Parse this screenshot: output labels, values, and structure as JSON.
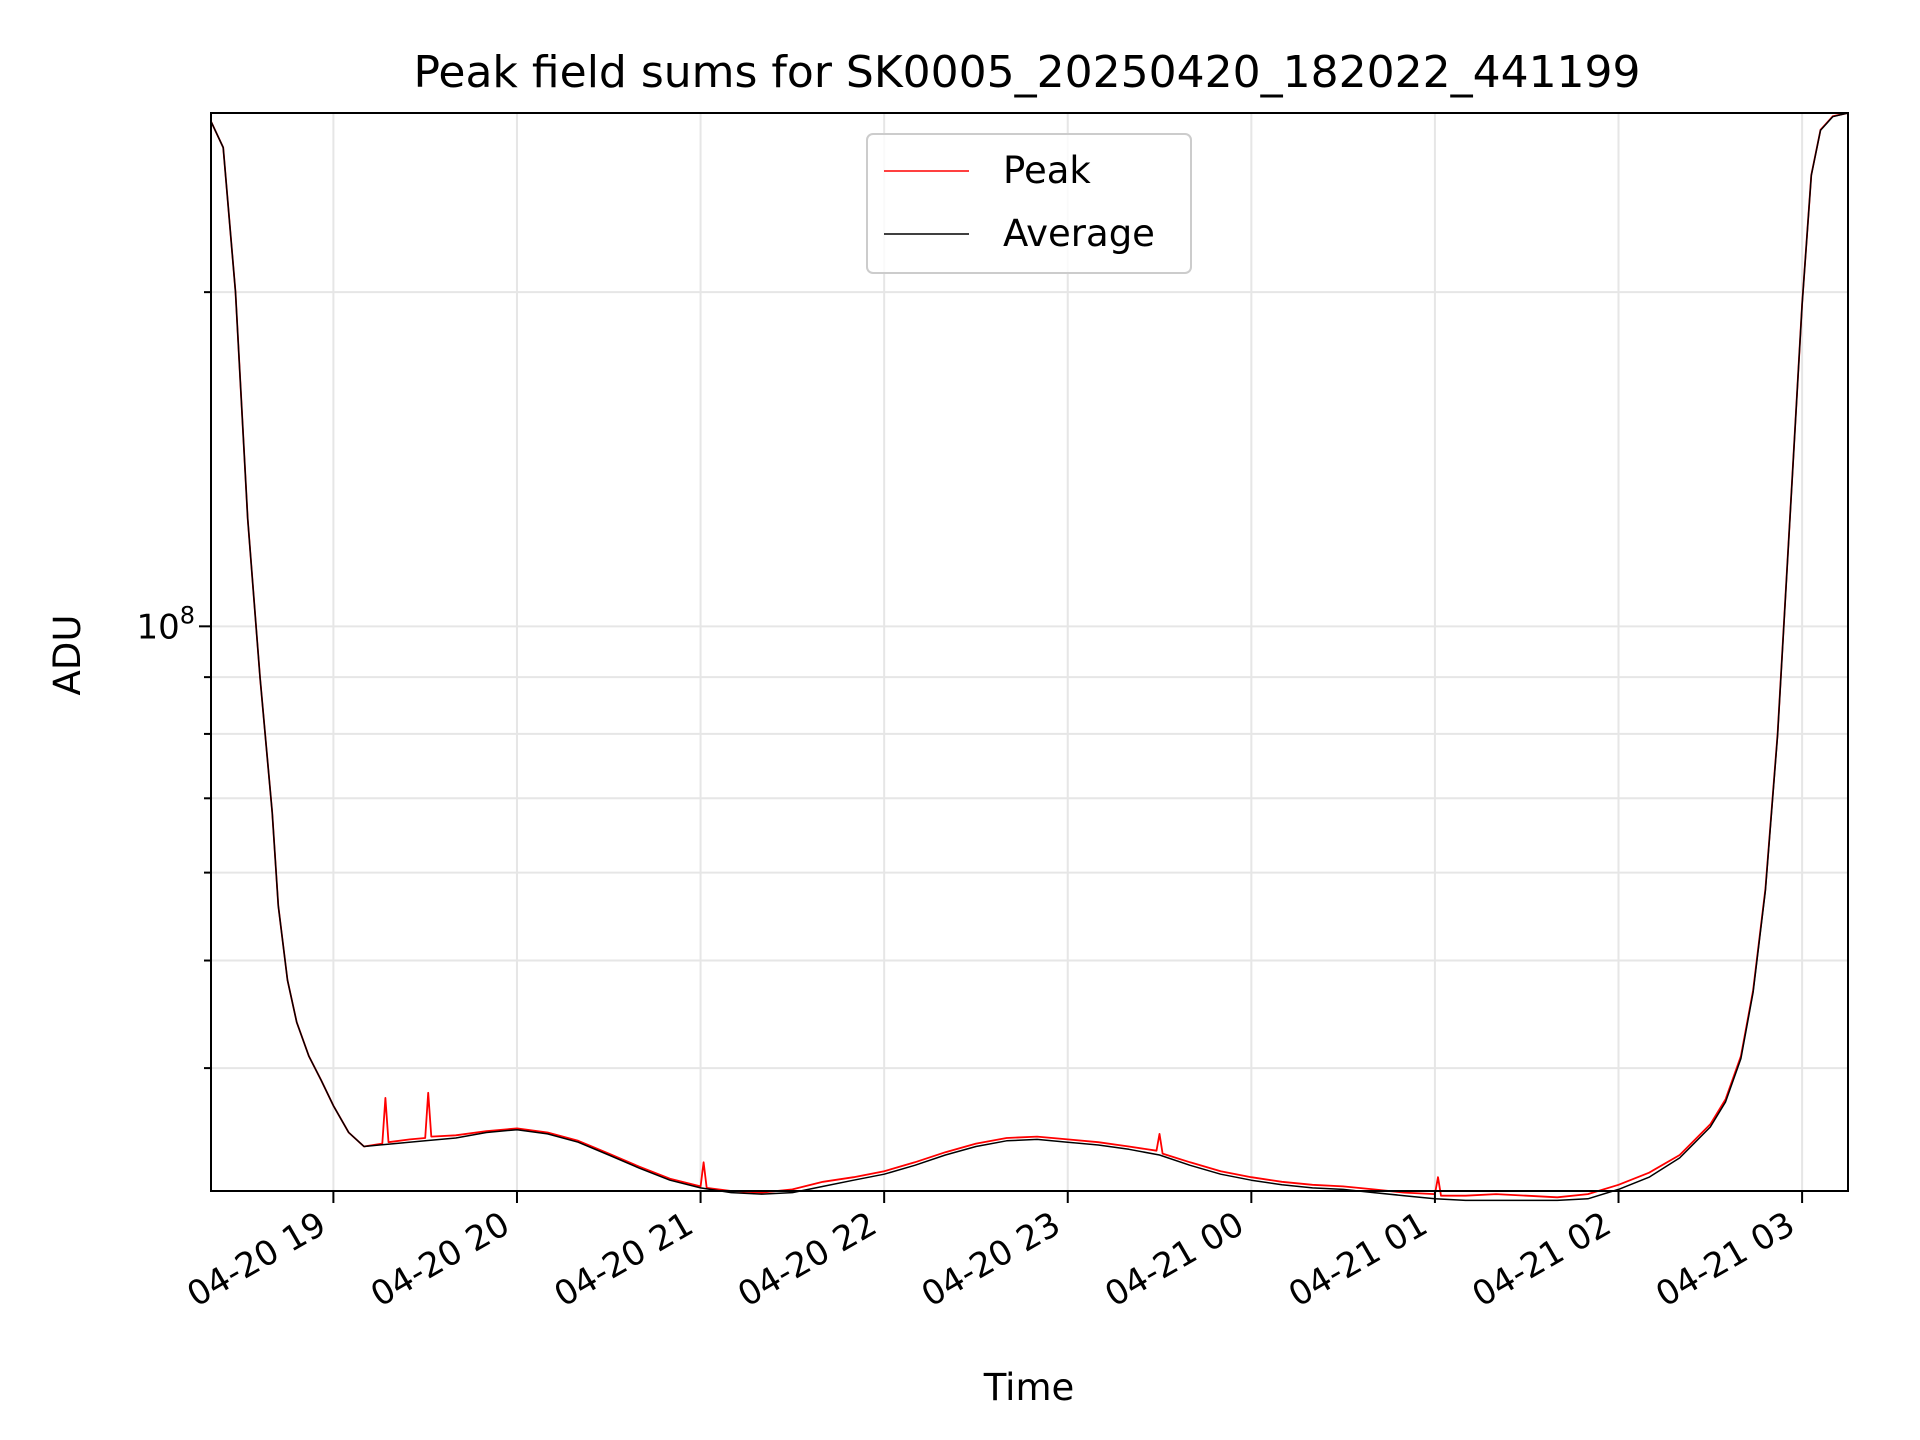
{
  "chart_data": {
    "type": "line",
    "title": "Peak field sums for SK0005_20250420_182022_441199",
    "xlabel": "Time",
    "ylabel": "ADU",
    "x_axis_type": "datetime",
    "xlim": [
      "2025-04-20 18:20",
      "2025-04-21 03:15"
    ],
    "x_ticks": [
      "2025-04-20 19:00",
      "2025-04-20 20:00",
      "2025-04-20 21:00",
      "2025-04-20 22:00",
      "2025-04-20 23:00",
      "2025-04-21 00:00",
      "2025-04-21 01:00",
      "2025-04-21 02:00",
      "2025-04-21 03:00"
    ],
    "x_tick_labels": [
      "04-20 19",
      "04-20 20",
      "04-20 21",
      "04-20 22",
      "04-20 23",
      "04-21 00",
      "04-21 01",
      "04-21 02",
      "04-21 03"
    ],
    "y_scale": "log",
    "ylim": [
      31000000,
      290000000
    ],
    "y_tick_labels": [
      {
        "value": 100000000,
        "base": "10",
        "exp": "8"
      }
    ],
    "grid": true,
    "legend_position": "top-center",
    "series": [
      {
        "name": "Peak",
        "color": "#ff0000",
        "x": [
          "2025-04-20 18:20",
          "2025-04-20 18:24",
          "2025-04-20 18:28",
          "2025-04-20 18:32",
          "2025-04-20 18:36",
          "2025-04-20 18:40",
          "2025-04-20 18:42",
          "2025-04-20 18:45",
          "2025-04-20 18:48",
          "2025-04-20 18:52",
          "2025-04-20 18:56",
          "2025-04-20 19:00",
          "2025-04-20 19:05",
          "2025-04-20 19:10",
          "2025-04-20 19:16",
          "2025-04-20 19:17",
          "2025-04-20 19:18",
          "2025-04-20 19:25",
          "2025-04-20 19:30",
          "2025-04-20 19:31",
          "2025-04-20 19:32",
          "2025-04-20 19:40",
          "2025-04-20 19:50",
          "2025-04-20 20:00",
          "2025-04-20 20:10",
          "2025-04-20 20:20",
          "2025-04-20 20:30",
          "2025-04-20 20:40",
          "2025-04-20 20:50",
          "2025-04-20 21:00",
          "2025-04-20 21:01",
          "2025-04-20 21:02",
          "2025-04-20 21:10",
          "2025-04-20 21:20",
          "2025-04-20 21:30",
          "2025-04-20 21:40",
          "2025-04-20 21:50",
          "2025-04-20 22:00",
          "2025-04-20 22:10",
          "2025-04-20 22:20",
          "2025-04-20 22:30",
          "2025-04-20 22:40",
          "2025-04-20 22:50",
          "2025-04-20 23:00",
          "2025-04-20 23:10",
          "2025-04-20 23:20",
          "2025-04-20 23:29",
          "2025-04-20 23:30",
          "2025-04-20 23:31",
          "2025-04-20 23:40",
          "2025-04-20 23:50",
          "2025-04-21 00:00",
          "2025-04-21 00:10",
          "2025-04-21 00:20",
          "2025-04-21 00:30",
          "2025-04-21 00:40",
          "2025-04-21 00:50",
          "2025-04-21 01:00",
          "2025-04-21 01:01",
          "2025-04-21 01:02",
          "2025-04-21 01:10",
          "2025-04-21 01:20",
          "2025-04-21 01:30",
          "2025-04-21 01:40",
          "2025-04-21 01:50",
          "2025-04-21 02:00",
          "2025-04-21 02:10",
          "2025-04-21 02:20",
          "2025-04-21 02:30",
          "2025-04-21 02:35",
          "2025-04-21 02:40",
          "2025-04-21 02:44",
          "2025-04-21 02:48",
          "2025-04-21 02:52",
          "2025-04-21 02:56",
          "2025-04-21 03:00",
          "2025-04-21 03:03",
          "2025-04-21 03:06",
          "2025-04-21 03:10",
          "2025-04-21 03:15"
        ],
        "y": [
          285000000,
          270000000,
          200000000,
          125000000,
          90000000,
          68000000,
          56000000,
          48000000,
          44000000,
          41000000,
          39000000,
          37000000,
          35000000,
          34000000,
          34200000,
          37600000,
          34300000,
          34500000,
          34600000,
          38000000,
          34700000,
          34800000,
          35100000,
          35300000,
          35000000,
          34400000,
          33500000,
          32600000,
          31800000,
          31300000,
          32900000,
          31200000,
          31000000,
          30900000,
          31100000,
          31600000,
          31900000,
          32300000,
          32900000,
          33600000,
          34200000,
          34600000,
          34700000,
          34500000,
          34300000,
          34000000,
          33700000,
          34900000,
          33500000,
          32900000,
          32300000,
          31900000,
          31600000,
          31400000,
          31300000,
          31100000,
          30900000,
          30800000,
          31900000,
          30700000,
          30700000,
          30800000,
          30700000,
          30600000,
          30800000,
          31400000,
          32200000,
          33400000,
          35600000,
          37500000,
          41000000,
          47000000,
          58000000,
          80000000,
          125000000,
          195000000,
          255000000,
          280000000,
          288000000,
          290000000
        ]
      },
      {
        "name": "Average",
        "color": "#000000",
        "x": [
          "2025-04-20 18:20",
          "2025-04-20 18:24",
          "2025-04-20 18:28",
          "2025-04-20 18:32",
          "2025-04-20 18:36",
          "2025-04-20 18:40",
          "2025-04-20 18:42",
          "2025-04-20 18:45",
          "2025-04-20 18:48",
          "2025-04-20 18:52",
          "2025-04-20 18:56",
          "2025-04-20 19:00",
          "2025-04-20 19:05",
          "2025-04-20 19:10",
          "2025-04-20 19:20",
          "2025-04-20 19:30",
          "2025-04-20 19:40",
          "2025-04-20 19:50",
          "2025-04-20 20:00",
          "2025-04-20 20:10",
          "2025-04-20 20:20",
          "2025-04-20 20:30",
          "2025-04-20 20:40",
          "2025-04-20 20:50",
          "2025-04-20 21:00",
          "2025-04-20 21:10",
          "2025-04-20 21:20",
          "2025-04-20 21:30",
          "2025-04-20 21:40",
          "2025-04-20 21:50",
          "2025-04-20 22:00",
          "2025-04-20 22:10",
          "2025-04-20 22:20",
          "2025-04-20 22:30",
          "2025-04-20 22:40",
          "2025-04-20 22:50",
          "2025-04-20 23:00",
          "2025-04-20 23:10",
          "2025-04-20 23:20",
          "2025-04-20 23:30",
          "2025-04-20 23:40",
          "2025-04-20 23:50",
          "2025-04-21 00:00",
          "2025-04-21 00:10",
          "2025-04-21 00:20",
          "2025-04-21 00:30",
          "2025-04-21 00:40",
          "2025-04-21 00:50",
          "2025-04-21 01:00",
          "2025-04-21 01:10",
          "2025-04-21 01:20",
          "2025-04-21 01:30",
          "2025-04-21 01:40",
          "2025-04-21 01:50",
          "2025-04-21 02:00",
          "2025-04-21 02:10",
          "2025-04-21 02:20",
          "2025-04-21 02:30",
          "2025-04-21 02:35",
          "2025-04-21 02:40",
          "2025-04-21 02:44",
          "2025-04-21 02:48",
          "2025-04-21 02:52",
          "2025-04-21 02:56",
          "2025-04-21 03:00",
          "2025-04-21 03:03",
          "2025-04-21 03:06",
          "2025-04-21 03:10",
          "2025-04-21 03:15"
        ],
        "y": [
          285000000,
          270000000,
          200000000,
          125000000,
          90000000,
          68000000,
          56000000,
          48000000,
          44000000,
          41000000,
          39000000,
          37000000,
          35000000,
          34000000,
          34200000,
          34400000,
          34600000,
          35000000,
          35200000,
          34900000,
          34300000,
          33400000,
          32500000,
          31700000,
          31200000,
          30900000,
          30800000,
          30900000,
          31300000,
          31700000,
          32100000,
          32700000,
          33400000,
          34000000,
          34400000,
          34500000,
          34300000,
          34100000,
          33800000,
          33400000,
          32700000,
          32100000,
          31700000,
          31400000,
          31200000,
          31100000,
          30900000,
          30700000,
          30500000,
          30400000,
          30400000,
          30400000,
          30400000,
          30500000,
          31100000,
          31900000,
          33200000,
          35400000,
          37300000,
          40800000,
          46800000,
          57800000,
          79800000,
          124800000,
          194800000,
          254800000,
          279800000,
          287800000,
          290000000
        ]
      }
    ]
  }
}
